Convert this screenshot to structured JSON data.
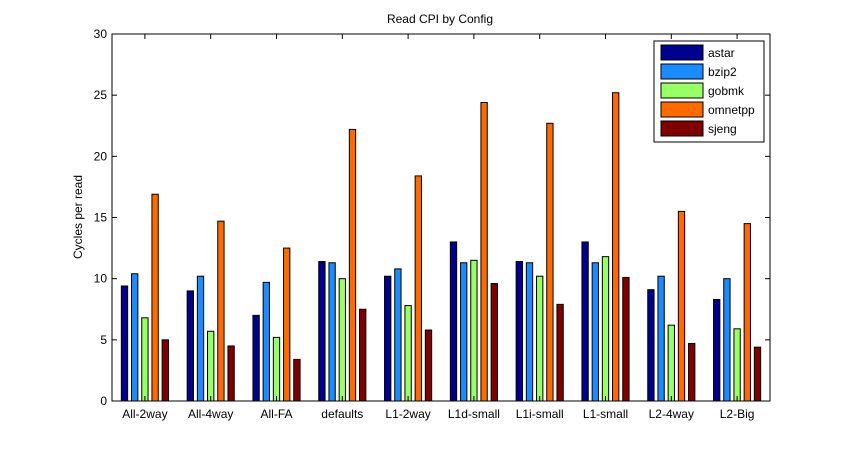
{
  "chart_data": {
    "type": "bar",
    "title": "Read CPI by Config",
    "xlabel": "",
    "ylabel": "Cycles per read",
    "ylim": [
      0,
      30
    ],
    "yticks": [
      0,
      5,
      10,
      15,
      20,
      25,
      30
    ],
    "grid": false,
    "legend_position": "top-right",
    "categories": [
      "All-2way",
      "All-4way",
      "All-FA",
      "defaults",
      "L1-2way",
      "L1d-small",
      "L1i-small",
      "L1-small",
      "L2-4way",
      "L2-Big"
    ],
    "series": [
      {
        "name": "astar",
        "color": "#00008f",
        "values": [
          9.4,
          9.0,
          7.0,
          11.4,
          10.2,
          13.0,
          11.4,
          13.0,
          9.1,
          8.3
        ]
      },
      {
        "name": "bzip2",
        "color": "#1a8cff",
        "values": [
          10.4,
          10.2,
          9.7,
          11.3,
          10.8,
          11.3,
          11.3,
          11.3,
          10.2,
          10.0
        ]
      },
      {
        "name": "gobmk",
        "color": "#99ff66",
        "values": [
          6.8,
          5.7,
          5.2,
          10.0,
          7.8,
          11.5,
          10.2,
          11.8,
          6.2,
          5.9
        ]
      },
      {
        "name": "omnetpp",
        "color": "#ff6a00",
        "values": [
          16.9,
          14.7,
          12.5,
          22.2,
          18.4,
          24.4,
          22.7,
          25.2,
          15.5,
          14.5
        ]
      },
      {
        "name": "sjeng",
        "color": "#800000",
        "values": [
          5.0,
          4.5,
          3.4,
          7.5,
          5.8,
          9.6,
          7.9,
          10.1,
          4.7,
          4.4
        ]
      }
    ]
  }
}
